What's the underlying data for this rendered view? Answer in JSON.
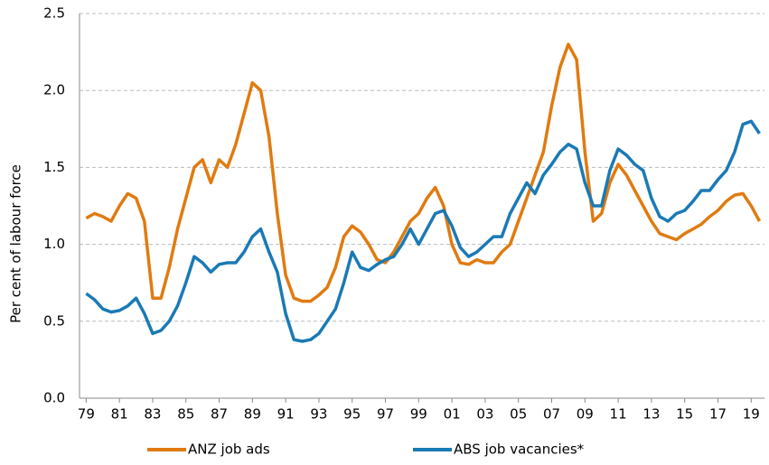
{
  "chart_data": {
    "type": "line",
    "y_label": "Per cent of labour force",
    "x": [
      1979.0,
      1979.5,
      1980.0,
      1980.5,
      1981.0,
      1981.5,
      1982.0,
      1982.5,
      1983.0,
      1983.5,
      1984.0,
      1984.5,
      1985.0,
      1985.5,
      1986.0,
      1986.5,
      1987.0,
      1987.5,
      1988.0,
      1988.5,
      1989.0,
      1989.5,
      1990.0,
      1990.5,
      1991.0,
      1991.5,
      1992.0,
      1992.5,
      1993.0,
      1993.5,
      1994.0,
      1994.5,
      1995.0,
      1995.5,
      1996.0,
      1996.5,
      1997.0,
      1997.5,
      1998.0,
      1998.5,
      1999.0,
      1999.5,
      2000.0,
      2000.5,
      2001.0,
      2001.5,
      2002.0,
      2002.5,
      2003.0,
      2003.5,
      2004.0,
      2004.5,
      2005.0,
      2005.5,
      2006.0,
      2006.5,
      2007.0,
      2007.5,
      2008.0,
      2008.5,
      2009.0,
      2009.5,
      2010.0,
      2010.5,
      2011.0,
      2011.5,
      2012.0,
      2012.5,
      2013.0,
      2013.5,
      2014.0,
      2014.5,
      2015.0,
      2015.5,
      2016.0,
      2016.5,
      2017.0,
      2017.5,
      2018.0,
      2018.5,
      2019.0,
      2019.5
    ],
    "series": [
      {
        "name": "ANZ job ads",
        "color": "#e07b10",
        "values": [
          1.17,
          1.2,
          1.18,
          1.15,
          1.25,
          1.33,
          1.3,
          1.15,
          0.65,
          0.65,
          0.85,
          1.1,
          1.3,
          1.5,
          1.55,
          1.4,
          1.55,
          1.5,
          1.65,
          1.85,
          2.05,
          2.0,
          1.7,
          1.2,
          0.8,
          0.65,
          0.63,
          0.63,
          0.67,
          0.72,
          0.85,
          1.05,
          1.12,
          1.08,
          1.0,
          0.9,
          0.88,
          0.95,
          1.05,
          1.15,
          1.2,
          1.3,
          1.37,
          1.25,
          1.0,
          0.88,
          0.87,
          0.9,
          0.88,
          0.88,
          0.95,
          1.0,
          1.15,
          1.3,
          1.45,
          1.6,
          1.9,
          2.15,
          2.3,
          2.2,
          1.6,
          1.15,
          1.2,
          1.4,
          1.52,
          1.45,
          1.35,
          1.25,
          1.15,
          1.07,
          1.05,
          1.03,
          1.07,
          1.1,
          1.13,
          1.18,
          1.22,
          1.28,
          1.32,
          1.33,
          1.25,
          1.15
        ]
      },
      {
        "name": "ABS job vacancies*",
        "color": "#1a7ab5",
        "values": [
          0.68,
          0.64,
          0.58,
          0.56,
          0.57,
          0.6,
          0.65,
          0.55,
          0.42,
          0.44,
          0.5,
          0.6,
          0.75,
          0.92,
          0.88,
          0.82,
          0.87,
          0.88,
          0.88,
          0.95,
          1.05,
          1.1,
          0.95,
          0.82,
          0.55,
          0.38,
          0.37,
          0.38,
          0.42,
          0.5,
          0.58,
          0.75,
          0.95,
          0.85,
          0.83,
          0.87,
          0.9,
          0.92,
          1.0,
          1.1,
          1.0,
          1.1,
          1.2,
          1.22,
          1.12,
          0.98,
          0.92,
          0.95,
          1.0,
          1.05,
          1.05,
          1.2,
          1.3,
          1.4,
          1.33,
          1.45,
          1.52,
          1.6,
          1.65,
          1.62,
          1.4,
          1.25,
          1.25,
          1.48,
          1.62,
          1.58,
          1.52,
          1.48,
          1.3,
          1.18,
          1.15,
          1.2,
          1.22,
          1.28,
          1.35,
          1.35,
          1.42,
          1.48,
          1.6,
          1.78,
          1.8,
          1.72
        ]
      }
    ],
    "xlim": [
      1978.6,
      2019.8
    ],
    "xticks": [
      {
        "value": 1979,
        "label": "79"
      },
      {
        "value": 1981,
        "label": "81"
      },
      {
        "value": 1983,
        "label": "83"
      },
      {
        "value": 1985,
        "label": "85"
      },
      {
        "value": 1987,
        "label": "87"
      },
      {
        "value": 1989,
        "label": "89"
      },
      {
        "value": 1991,
        "label": "91"
      },
      {
        "value": 1993,
        "label": "93"
      },
      {
        "value": 1995,
        "label": "95"
      },
      {
        "value": 1997,
        "label": "97"
      },
      {
        "value": 1999,
        "label": "99"
      },
      {
        "value": 2001,
        "label": "01"
      },
      {
        "value": 2003,
        "label": "03"
      },
      {
        "value": 2005,
        "label": "05"
      },
      {
        "value": 2007,
        "label": "07"
      },
      {
        "value": 2009,
        "label": "09"
      },
      {
        "value": 2011,
        "label": "11"
      },
      {
        "value": 2013,
        "label": "13"
      },
      {
        "value": 2015,
        "label": "15"
      },
      {
        "value": 2017,
        "label": "17"
      },
      {
        "value": 2019,
        "label": "19"
      }
    ],
    "ylim": [
      0,
      2.5
    ],
    "yticks": [
      {
        "value": 0,
        "label": "0.0"
      },
      0.5,
      {
        "value": 1,
        "label": "1.0"
      },
      1.5,
      {
        "value": 2,
        "label": "2.0"
      },
      2.5
    ],
    "grid": true,
    "legend": "bottom"
  }
}
